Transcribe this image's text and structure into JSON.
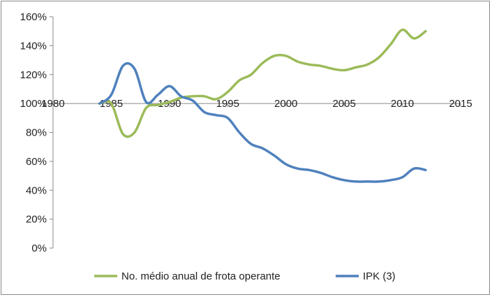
{
  "chart_data": {
    "type": "line",
    "title": "",
    "xlabel": "",
    "ylabel": "",
    "xlim": [
      1980,
      2015
    ],
    "ylim": [
      0,
      160
    ],
    "x_ticks": [
      1980,
      1985,
      1990,
      1995,
      2000,
      2005,
      2010,
      2015
    ],
    "y_ticks": [
      0,
      20,
      40,
      60,
      80,
      100,
      120,
      140,
      160
    ],
    "x_tick_labels": [
      "1980",
      "1985",
      "1990",
      "1995",
      "2000",
      "2005",
      "2010",
      "2015"
    ],
    "y_tick_labels": [
      "0%",
      "20%",
      "40%",
      "60%",
      "80%",
      "100%",
      "120%",
      "140%",
      "160%"
    ],
    "y_unit": "%",
    "x_axis_crosses_at": 100,
    "grid": false,
    "legend_position": "bottom",
    "series": [
      {
        "name": "No. médio anual de frota operante",
        "color": "#9BBB59",
        "x": [
          1984,
          1985,
          1986,
          1987,
          1988,
          1989,
          1990,
          1991,
          1992,
          1993,
          1994,
          1995,
          1996,
          1997,
          1998,
          1999,
          2000,
          2001,
          2002,
          2003,
          2004,
          2005,
          2006,
          2007,
          2008,
          2009,
          2010,
          2011,
          2012
        ],
        "y": [
          100,
          100,
          79,
          80,
          97,
          99,
          101,
          104,
          105,
          105,
          103,
          108,
          116,
          120,
          128,
          133,
          133,
          129,
          127,
          126,
          124,
          123,
          125,
          127,
          132,
          141,
          151,
          145,
          150
        ]
      },
      {
        "name": "IPK (3)",
        "color": "#4F81BD",
        "x": [
          1984,
          1985,
          1986,
          1987,
          1988,
          1989,
          1990,
          1991,
          1992,
          1993,
          1994,
          1995,
          1996,
          1997,
          1998,
          1999,
          2000,
          2001,
          2002,
          2003,
          2004,
          2005,
          2006,
          2007,
          2008,
          2009,
          2010,
          2011,
          2012
        ],
        "y": [
          100,
          106,
          126,
          124,
          101,
          106,
          112,
          105,
          102,
          94,
          92,
          90,
          80,
          72,
          69,
          64,
          58,
          55,
          54,
          52,
          49,
          47,
          46,
          46,
          46,
          47,
          49,
          55,
          54
        ]
      }
    ]
  }
}
